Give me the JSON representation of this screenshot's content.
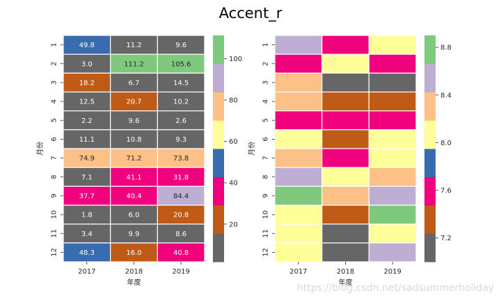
{
  "figure": {
    "title": "Accent_r",
    "watermark": "https://blog.csdn.net/sadsummerholiday"
  },
  "colormap": {
    "name": "Accent_r",
    "colors": [
      "#666666",
      "#bf5b17",
      "#f0027f",
      "#386cb0",
      "#ffff99",
      "#fdc086",
      "#beaed4",
      "#7fc97f"
    ]
  },
  "chart_data": [
    {
      "type": "heatmap",
      "title": "",
      "xlabel": "年度",
      "ylabel": "月份",
      "x_categories": [
        "2017",
        "2018",
        "2019"
      ],
      "y_categories": [
        "1",
        "2",
        "3",
        "4",
        "5",
        "6",
        "7",
        "8",
        "9",
        "10",
        "11",
        "12"
      ],
      "annotated": true,
      "values": [
        [
          49.8,
          11.2,
          9.6
        ],
        [
          3.0,
          111.2,
          105.6
        ],
        [
          18.2,
          6.7,
          14.5
        ],
        [
          12.5,
          20.7,
          10.2
        ],
        [
          2.2,
          9.6,
          2.6
        ],
        [
          11.1,
          10.8,
          9.3
        ],
        [
          74.9,
          71.2,
          73.8
        ],
        [
          7.1,
          41.1,
          31.8
        ],
        [
          37.7,
          40.4,
          84.4
        ],
        [
          1.8,
          6.0,
          20.8
        ],
        [
          3.4,
          9.9,
          8.6
        ],
        [
          48.3,
          16.0,
          40.8
        ]
      ],
      "vmin": 1.8,
      "vmax": 111.2,
      "colorbar": {
        "ticks": [
          20,
          40,
          60,
          80,
          100
        ],
        "tick_labels": [
          "20",
          "40",
          "60",
          "80",
          "100"
        ]
      }
    },
    {
      "type": "heatmap",
      "title": "",
      "xlabel": "年度",
      "ylabel": "月份",
      "x_categories": [
        "2017",
        "2018",
        "2019"
      ],
      "y_categories": [
        "1",
        "2",
        "3",
        "4",
        "5",
        "6",
        "7",
        "8",
        "9",
        "10",
        "11",
        "12"
      ],
      "annotated": false,
      "values": [
        [
          8.5,
          7.7,
          8.0
        ],
        [
          7.7,
          8.0,
          7.7
        ],
        [
          8.3,
          7.1,
          7.1
        ],
        [
          8.3,
          7.3,
          7.3
        ],
        [
          7.7,
          7.5,
          7.7
        ],
        [
          8.0,
          7.3,
          8.0
        ],
        [
          8.3,
          7.7,
          8.0
        ],
        [
          8.5,
          8.0,
          8.3
        ],
        [
          8.8,
          8.3,
          8.5
        ],
        [
          8.0,
          7.3,
          8.8
        ],
        [
          8.0,
          7.1,
          8.0
        ],
        [
          8.0,
          7.1,
          8.5
        ]
      ],
      "vmin": 7.0,
      "vmax": 8.9,
      "colorbar": {
        "ticks": [
          7.2,
          7.6,
          8.0,
          8.4,
          8.8
        ],
        "tick_labels": [
          "7.2",
          "7.6",
          "8.0",
          "8.4",
          "8.8"
        ]
      }
    }
  ]
}
